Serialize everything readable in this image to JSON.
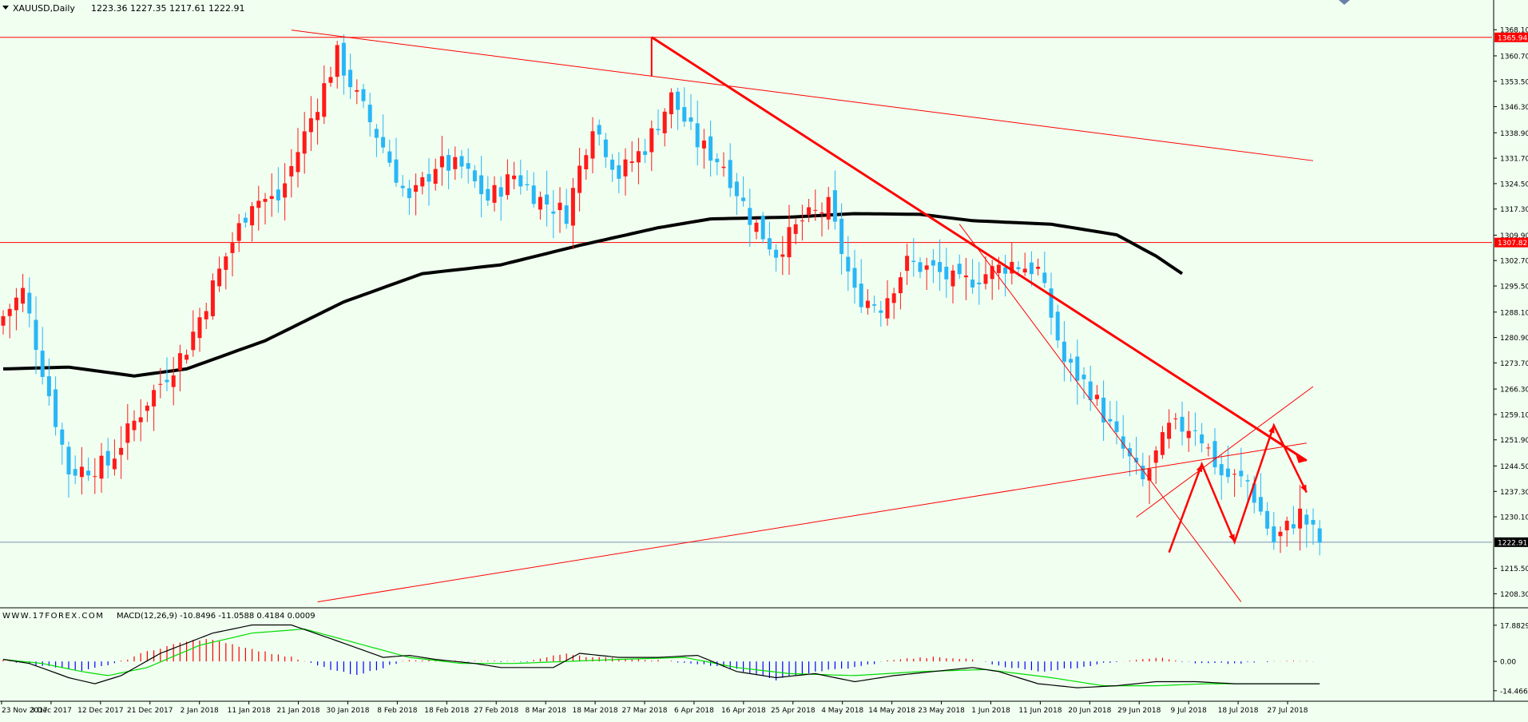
{
  "header": {
    "title": "XAUUSD,Daily",
    "ohlc": "1223.36 1227.35 1217.61 1222.91"
  },
  "macd_header": {
    "watermark": "WWW.17FOREX.COM",
    "indicator": "MACD(12,26,9) -10.8496 -11.0588 0.4184 0.0009"
  },
  "colors": {
    "background": "#f0fff0",
    "bull_candle": "#ff1a1a",
    "bear_candle": "#29b6f6",
    "moving_average": "#000000",
    "trendlines": "#ff0000",
    "macd_line": "#000000",
    "signal_line": "#00dd00",
    "hist_positive": "#ff0000",
    "hist_negative": "#0000ff",
    "price_tag_bg": "#ff0000",
    "current_price_tag_bg": "#000000"
  },
  "chart_data": [
    {
      "type": "candlestick",
      "symbol": "XAUUSD",
      "timeframe": "Daily",
      "ylim": [
        1205.0,
        1372.0
      ],
      "y_ticks": [
        "1368.10",
        "1360.70",
        "1353.50",
        "1346.30",
        "1338.90",
        "1331.70",
        "1324.50",
        "1317.30",
        "1309.90",
        "1302.70",
        "1295.50",
        "1288.10",
        "1280.90",
        "1273.70",
        "1266.30",
        "1259.10",
        "1251.90",
        "1244.50",
        "1237.30",
        "1230.10",
        "1215.50",
        "1208.30"
      ],
      "x_tick_labels": [
        "23 Nov 2017",
        "3 Dec 2017",
        "12 Dec 2017",
        "21 Dec 2017",
        "2 Jan 2018",
        "11 Jan 2018",
        "21 Jan 2018",
        "30 Jan 2018",
        "8 Feb 2018",
        "18 Feb 2018",
        "27 Feb 2018",
        "8 Mar 2018",
        "18 Mar 2018",
        "27 Mar 2018",
        "6 Apr 2018",
        "16 Apr 2018",
        "25 Apr 2018",
        "4 May 2018",
        "14 May 2018",
        "23 May 2018",
        "1 Jun 2018",
        "11 Jun 2018",
        "20 Jun 2018",
        "29 Jun 2018",
        "9 Jul 2018",
        "18 Jul 2018",
        "27 Jul 2018"
      ],
      "price_tags": [
        {
          "label": "1365.94",
          "value": 1365.94
        },
        {
          "label": "1307.82",
          "value": 1307.82
        },
        {
          "label": "1222.91",
          "value": 1222.91,
          "current": true
        }
      ],
      "horizontal_lines": [
        1365.94,
        1307.82,
        1222.91
      ],
      "close_anchors": [
        {
          "i": 0,
          "c": 1287
        },
        {
          "i": 3,
          "c": 1294
        },
        {
          "i": 6,
          "c": 1272
        },
        {
          "i": 10,
          "c": 1243
        },
        {
          "i": 16,
          "c": 1245
        },
        {
          "i": 22,
          "c": 1263
        },
        {
          "i": 28,
          "c": 1278
        },
        {
          "i": 34,
          "c": 1304
        },
        {
          "i": 38,
          "c": 1320
        },
        {
          "i": 42,
          "c": 1320
        },
        {
          "i": 47,
          "c": 1343
        },
        {
          "i": 51,
          "c": 1361
        },
        {
          "i": 54,
          "c": 1349
        },
        {
          "i": 58,
          "c": 1335
        },
        {
          "i": 62,
          "c": 1319
        },
        {
          "i": 66,
          "c": 1330
        },
        {
          "i": 70,
          "c": 1329
        },
        {
          "i": 74,
          "c": 1320
        },
        {
          "i": 78,
          "c": 1327
        },
        {
          "i": 82,
          "c": 1320
        },
        {
          "i": 86,
          "c": 1316
        },
        {
          "i": 90,
          "c": 1342
        },
        {
          "i": 94,
          "c": 1327
        },
        {
          "i": 98,
          "c": 1335
        },
        {
          "i": 102,
          "c": 1349
        },
        {
          "i": 106,
          "c": 1336
        },
        {
          "i": 110,
          "c": 1330
        },
        {
          "i": 114,
          "c": 1315
        },
        {
          "i": 118,
          "c": 1305
        },
        {
          "i": 122,
          "c": 1314
        },
        {
          "i": 126,
          "c": 1318
        },
        {
          "i": 130,
          "c": 1293
        },
        {
          "i": 134,
          "c": 1290
        },
        {
          "i": 138,
          "c": 1302
        },
        {
          "i": 142,
          "c": 1300
        },
        {
          "i": 146,
          "c": 1296
        },
        {
          "i": 150,
          "c": 1299
        },
        {
          "i": 154,
          "c": 1302
        },
        {
          "i": 158,
          "c": 1300
        },
        {
          "i": 162,
          "c": 1274
        },
        {
          "i": 166,
          "c": 1266
        },
        {
          "i": 170,
          "c": 1252
        },
        {
          "i": 174,
          "c": 1240
        },
        {
          "i": 178,
          "c": 1255
        },
        {
          "i": 182,
          "c": 1256
        },
        {
          "i": 186,
          "c": 1242
        },
        {
          "i": 190,
          "c": 1240
        },
        {
          "i": 194,
          "c": 1223
        },
        {
          "i": 198,
          "c": 1231
        },
        {
          "i": 201,
          "c": 1223
        }
      ],
      "moving_average_anchors": [
        {
          "i": 0,
          "v": 1272
        },
        {
          "i": 10,
          "v": 1272.5
        },
        {
          "i": 20,
          "v": 1270
        },
        {
          "i": 28,
          "v": 1272
        },
        {
          "i": 40,
          "v": 1280
        },
        {
          "i": 52,
          "v": 1291
        },
        {
          "i": 64,
          "v": 1299
        },
        {
          "i": 76,
          "v": 1301.5
        },
        {
          "i": 88,
          "v": 1307
        },
        {
          "i": 100,
          "v": 1312
        },
        {
          "i": 108,
          "v": 1314.5
        },
        {
          "i": 120,
          "v": 1315
        },
        {
          "i": 130,
          "v": 1316
        },
        {
          "i": 140,
          "v": 1315.8
        },
        {
          "i": 148,
          "v": 1314
        },
        {
          "i": 160,
          "v": 1313
        },
        {
          "i": 170,
          "v": 1310
        },
        {
          "i": 176,
          "v": 1304
        },
        {
          "i": 180,
          "v": 1299
        }
      ],
      "trendlines": [
        {
          "from": {
            "i": 44,
            "v": 1368
          },
          "to": {
            "i": 200,
            "v": 1331
          },
          "width": 1
        },
        {
          "from": {
            "i": 99,
            "v": 1366
          },
          "to": {
            "i": 199,
            "v": 1246
          },
          "width": 3
        },
        {
          "from": {
            "i": 99,
            "v": 1366
          },
          "to": {
            "i": 99,
            "v": 1355
          },
          "width": 2
        },
        {
          "from": {
            "i": 48,
            "v": 1206
          },
          "to": {
            "i": 199,
            "v": 1251
          },
          "width": 1
        },
        {
          "from": {
            "i": 146,
            "v": 1313
          },
          "to": {
            "i": 189,
            "v": 1206
          },
          "width": 1
        },
        {
          "from": {
            "i": 173,
            "v": 1230
          },
          "to": {
            "i": 200,
            "v": 1267
          },
          "width": 1
        }
      ],
      "projection_path": [
        {
          "i": 178,
          "v": 1220
        },
        {
          "i": 183,
          "v": 1245
        },
        {
          "i": 188,
          "v": 1223
        },
        {
          "i": 194,
          "v": 1256
        },
        {
          "i": 199,
          "v": 1237
        }
      ]
    },
    {
      "type": "histogram_line",
      "name": "MACD(12,26,9)",
      "ylim": [
        -16.5,
        19.0
      ],
      "y_ticks": [
        "17.8829",
        "0.00",
        "-14.4665"
      ],
      "macd_anchors": [
        {
          "i": 0,
          "v": 1
        },
        {
          "i": 4,
          "v": -1
        },
        {
          "i": 10,
          "v": -8
        },
        {
          "i": 14,
          "v": -11
        },
        {
          "i": 18,
          "v": -7
        },
        {
          "i": 24,
          "v": 4
        },
        {
          "i": 32,
          "v": 14
        },
        {
          "i": 38,
          "v": 18
        },
        {
          "i": 44,
          "v": 18
        },
        {
          "i": 52,
          "v": 9
        },
        {
          "i": 58,
          "v": 2
        },
        {
          "i": 62,
          "v": 3
        },
        {
          "i": 66,
          "v": 1
        },
        {
          "i": 72,
          "v": -1
        },
        {
          "i": 76,
          "v": -3
        },
        {
          "i": 84,
          "v": -3
        },
        {
          "i": 88,
          "v": 4
        },
        {
          "i": 94,
          "v": 2
        },
        {
          "i": 100,
          "v": 2
        },
        {
          "i": 106,
          "v": 3
        },
        {
          "i": 112,
          "v": -5
        },
        {
          "i": 118,
          "v": -8
        },
        {
          "i": 124,
          "v": -6
        },
        {
          "i": 130,
          "v": -10
        },
        {
          "i": 136,
          "v": -7
        },
        {
          "i": 142,
          "v": -5
        },
        {
          "i": 148,
          "v": -3
        },
        {
          "i": 152,
          "v": -5
        },
        {
          "i": 158,
          "v": -11
        },
        {
          "i": 164,
          "v": -13
        },
        {
          "i": 170,
          "v": -12
        },
        {
          "i": 176,
          "v": -10
        },
        {
          "i": 182,
          "v": -10
        },
        {
          "i": 188,
          "v": -11
        },
        {
          "i": 194,
          "v": -11
        },
        {
          "i": 201,
          "v": -11
        }
      ],
      "signal_anchors": [
        {
          "i": 0,
          "v": 1
        },
        {
          "i": 6,
          "v": -1
        },
        {
          "i": 12,
          "v": -5
        },
        {
          "i": 16,
          "v": -7
        },
        {
          "i": 22,
          "v": -3
        },
        {
          "i": 30,
          "v": 8
        },
        {
          "i": 38,
          "v": 14
        },
        {
          "i": 46,
          "v": 16
        },
        {
          "i": 54,
          "v": 9
        },
        {
          "i": 62,
          "v": 2
        },
        {
          "i": 70,
          "v": -1
        },
        {
          "i": 78,
          "v": -1
        },
        {
          "i": 86,
          "v": 0
        },
        {
          "i": 94,
          "v": 1
        },
        {
          "i": 104,
          "v": 2
        },
        {
          "i": 112,
          "v": -3
        },
        {
          "i": 120,
          "v": -6
        },
        {
          "i": 130,
          "v": -7
        },
        {
          "i": 140,
          "v": -5
        },
        {
          "i": 150,
          "v": -4
        },
        {
          "i": 160,
          "v": -8
        },
        {
          "i": 168,
          "v": -12
        },
        {
          "i": 176,
          "v": -12
        },
        {
          "i": 184,
          "v": -11
        },
        {
          "i": 192,
          "v": -11
        },
        {
          "i": 201,
          "v": -11
        }
      ],
      "histogram_anchors": [
        {
          "i": 0,
          "v": 0.5
        },
        {
          "i": 6,
          "v": -2
        },
        {
          "i": 12,
          "v": -5
        },
        {
          "i": 18,
          "v": 0
        },
        {
          "i": 22,
          "v": 5
        },
        {
          "i": 28,
          "v": 10
        },
        {
          "i": 32,
          "v": 11
        },
        {
          "i": 38,
          "v": 6
        },
        {
          "i": 44,
          "v": 2
        },
        {
          "i": 50,
          "v": -4
        },
        {
          "i": 54,
          "v": -7
        },
        {
          "i": 58,
          "v": -3
        },
        {
          "i": 62,
          "v": 1
        },
        {
          "i": 70,
          "v": 0
        },
        {
          "i": 80,
          "v": 0
        },
        {
          "i": 86,
          "v": 4
        },
        {
          "i": 90,
          "v": 2
        },
        {
          "i": 98,
          "v": 1
        },
        {
          "i": 106,
          "v": -1
        },
        {
          "i": 112,
          "v": -4
        },
        {
          "i": 118,
          "v": -9
        },
        {
          "i": 124,
          "v": -5
        },
        {
          "i": 130,
          "v": -3
        },
        {
          "i": 136,
          "v": 1
        },
        {
          "i": 142,
          "v": 2
        },
        {
          "i": 148,
          "v": 1
        },
        {
          "i": 152,
          "v": -2
        },
        {
          "i": 158,
          "v": -5
        },
        {
          "i": 164,
          "v": -3
        },
        {
          "i": 170,
          "v": 0
        },
        {
          "i": 176,
          "v": 2
        },
        {
          "i": 182,
          "v": -1
        },
        {
          "i": 188,
          "v": -1
        },
        {
          "i": 194,
          "v": 0
        },
        {
          "i": 201,
          "v": 0.3
        }
      ]
    }
  ]
}
